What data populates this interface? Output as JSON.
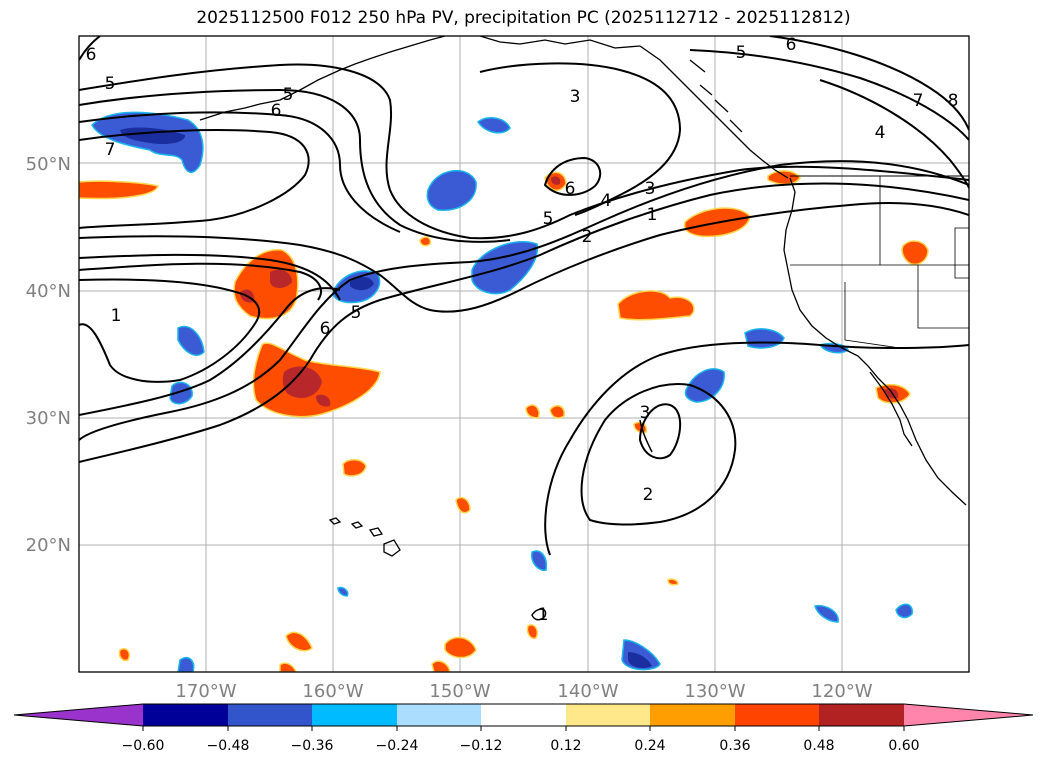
{
  "title": "2025112500 F012 250 hPa PV, precipitation PC (2025112712 - 2025112812)",
  "map": {
    "lat_labels": [
      "50°N",
      "40°N",
      "30°N",
      "20°N"
    ],
    "lon_labels": [
      "170°W",
      "160°W",
      "150°W",
      "140°W",
      "130°W",
      "120°W"
    ],
    "label_color": "#808080",
    "contour_labels": [
      "6",
      "5",
      "5",
      "6",
      "7",
      "3",
      "5",
      "6",
      "6",
      "5",
      "4",
      "3",
      "2",
      "1",
      "6",
      "5",
      "1",
      "3",
      "2",
      "7",
      "8",
      "4",
      "1"
    ]
  },
  "colorbar": {
    "tick_labels": [
      "−0.60",
      "−0.48",
      "−0.36",
      "−0.24",
      "−0.12",
      "0.12",
      "0.24",
      "0.36",
      "0.48",
      "0.60"
    ],
    "colors": [
      "#9933cc",
      "#000099",
      "#3355cc",
      "#00bbff",
      "#aaddff",
      "#ffffff",
      "#ffe88a",
      "#ff9e00",
      "#ff4400",
      "#b22222",
      "#ff85ac"
    ]
  },
  "legend": {
    "colors": {
      "strong_neg": "#1a2ea0",
      "neg": "#3b5bd4",
      "pos": "#ff4d00",
      "strong_pos": "#b8282a",
      "edge_pos": "#ffd54a",
      "edge_neg": "#19b6ee"
    }
  }
}
